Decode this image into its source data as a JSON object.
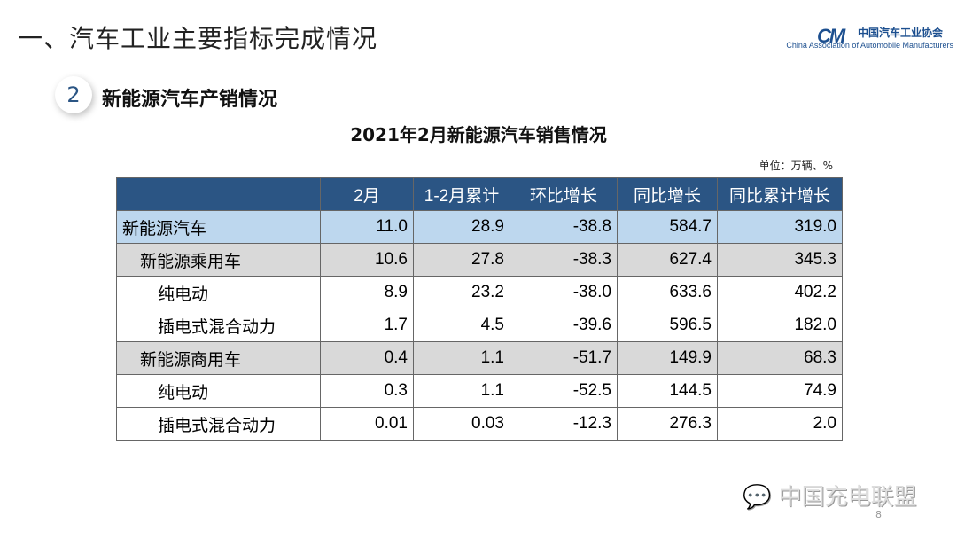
{
  "header": {
    "title": "一、汽车工业主要指标完成情况",
    "logo_cn": "中国汽车工业协会",
    "logo_en": "China Association of Automobile Manufacturers",
    "logo_mark": "CM"
  },
  "section": {
    "number": "2",
    "title": "新能源汽车产销情况"
  },
  "table": {
    "title": "2021年2月新能源汽车销售情况",
    "unit": "单位：万辆、%",
    "columns": [
      "",
      "2月",
      "1-2月累计",
      "环比增长",
      "同比增长",
      "同比累计增长"
    ],
    "rows": [
      {
        "label": "新能源汽车",
        "level": 0,
        "values": [
          "11.0",
          "28.9",
          "-38.8",
          "584.7",
          "319.0"
        ]
      },
      {
        "label": "新能源乘用车",
        "level": 1,
        "values": [
          "10.6",
          "27.8",
          "-38.3",
          "627.4",
          "345.3"
        ]
      },
      {
        "label": "纯电动",
        "level": 2,
        "values": [
          "8.9",
          "23.2",
          "-38.0",
          "633.6",
          "402.2"
        ]
      },
      {
        "label": "插电式混合动力",
        "level": 2,
        "values": [
          "1.7",
          "4.5",
          "-39.6",
          "596.5",
          "182.0"
        ]
      },
      {
        "label": "新能源商用车",
        "level": 1,
        "values": [
          "0.4",
          "1.1",
          "-51.7",
          "149.9",
          "68.3"
        ]
      },
      {
        "label": "纯电动",
        "level": 2,
        "values": [
          "0.3",
          "1.1",
          "-52.5",
          "144.5",
          "74.9"
        ]
      },
      {
        "label": "插电式混合动力",
        "level": 2,
        "values": [
          "0.01",
          "0.03",
          "-12.3",
          "276.3",
          "2.0"
        ]
      }
    ]
  },
  "watermark": "中国充电联盟",
  "page_number": "8"
}
